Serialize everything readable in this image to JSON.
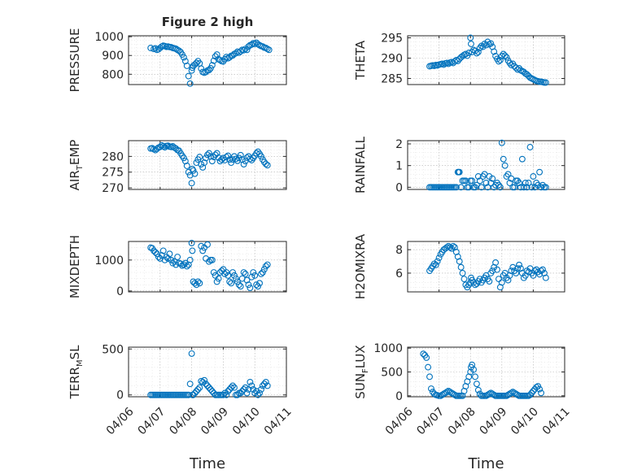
{
  "figure": {
    "title": "Figure 2 high",
    "marker_color": "#0072BD",
    "xlabel": "Time"
  },
  "chart_data": [
    {
      "type": "scatter",
      "name": "PRESSURE",
      "ylabel": "PRESSURE",
      "title": "Figure 2 high",
      "xlim": [
        "04/06",
        "04/11"
      ],
      "ylim": [
        745,
        1005
      ],
      "yticks": [
        800,
        900,
        1000
      ],
      "x": [
        6.7,
        6.8,
        6.85,
        6.9,
        6.95,
        7.0,
        7.05,
        7.1,
        7.15,
        7.2,
        7.25,
        7.3,
        7.35,
        7.4,
        7.45,
        7.5,
        7.55,
        7.6,
        7.65,
        7.7,
        7.75,
        7.8,
        7.85,
        7.9,
        7.95,
        8.0,
        8.02,
        8.05,
        8.1,
        8.15,
        8.2,
        8.25,
        8.3,
        8.35,
        8.4,
        8.45,
        8.5,
        8.55,
        8.6,
        8.65,
        8.7,
        8.75,
        8.8,
        8.85,
        8.9,
        8.95,
        9.0,
        9.05,
        9.1,
        9.15,
        9.2,
        9.25,
        9.3,
        9.35,
        9.4,
        9.45,
        9.5,
        9.55,
        9.6,
        9.65,
        9.7,
        9.75,
        9.8,
        9.85,
        9.9,
        9.95,
        10.0,
        10.05,
        10.1,
        10.15,
        10.2,
        10.25,
        10.3,
        10.35,
        10.4,
        10.45
      ],
      "y": [
        940,
        935,
        938,
        930,
        933,
        940,
        948,
        952,
        950,
        946,
        948,
        945,
        944,
        940,
        938,
        936,
        930,
        925,
        918,
        905,
        890,
        870,
        845,
        790,
        750,
        820,
        835,
        845,
        852,
        860,
        870,
        858,
        830,
        812,
        808,
        812,
        820,
        822,
        832,
        848,
        872,
        895,
        905,
        880,
        875,
        870,
        868,
        880,
        892,
        885,
        890,
        898,
        900,
        908,
        912,
        920,
        915,
        922,
        930,
        928,
        935,
        930,
        948,
        955,
        958,
        965,
        962,
        968,
        960,
        955,
        950,
        948,
        942,
        940,
        935,
        930
      ]
    },
    {
      "type": "scatter",
      "name": "THETA",
      "ylabel": "THETA",
      "xlim": [
        "04/06",
        "04/11"
      ],
      "ylim": [
        283.5,
        295.5
      ],
      "yticks": [
        285,
        290,
        295
      ],
      "x": [
        6.7,
        6.75,
        6.8,
        6.85,
        6.9,
        6.95,
        7.0,
        7.05,
        7.1,
        7.15,
        7.2,
        7.25,
        7.3,
        7.35,
        7.4,
        7.45,
        7.5,
        7.55,
        7.6,
        7.65,
        7.7,
        7.75,
        7.8,
        7.85,
        7.9,
        7.95,
        8.0,
        8.02,
        8.05,
        8.1,
        8.15,
        8.2,
        8.25,
        8.3,
        8.35,
        8.4,
        8.45,
        8.5,
        8.55,
        8.6,
        8.65,
        8.7,
        8.75,
        8.8,
        8.85,
        8.9,
        8.95,
        9.0,
        9.05,
        9.1,
        9.15,
        9.2,
        9.25,
        9.3,
        9.35,
        9.4,
        9.45,
        9.5,
        9.55,
        9.6,
        9.65,
        9.7,
        9.75,
        9.8,
        9.85,
        9.9,
        9.95,
        10.0,
        10.05,
        10.1,
        10.15,
        10.2,
        10.25,
        10.3,
        10.35,
        10.4
      ],
      "y": [
        288,
        288.1,
        288.2,
        288.1,
        288.3,
        288.2,
        288.4,
        288.5,
        288.6,
        288.4,
        288.7,
        288.8,
        288.6,
        288.9,
        289,
        288.8,
        289.2,
        289.5,
        289.3,
        289.8,
        290.2,
        290.5,
        290.8,
        291,
        290.6,
        291.3,
        295,
        293.5,
        291.5,
        292,
        291.8,
        291.2,
        291.5,
        292.5,
        293,
        292.8,
        293.5,
        293.2,
        294,
        293.4,
        293.6,
        292.8,
        291.6,
        290.5,
        289.8,
        289.2,
        289.5,
        290.5,
        291,
        290.6,
        290.2,
        289.4,
        288.8,
        288.3,
        288.6,
        288.0,
        287.6,
        287.2,
        287.5,
        287.0,
        286.8,
        286.6,
        286.2,
        286.0,
        285.6,
        285.2,
        285.0,
        284.8,
        284.6,
        284.4,
        284.3,
        284.2,
        284.2,
        284.1,
        284.0,
        284.0
      ]
    },
    {
      "type": "scatter",
      "name": "AIR_TEMP",
      "ylabel": "AIR_TEMP",
      "xlim": [
        "04/06",
        "04/11"
      ],
      "ylim": [
        269.5,
        285
      ],
      "yticks": [
        270,
        275,
        280
      ],
      "x": [
        6.7,
        6.75,
        6.8,
        6.85,
        6.9,
        6.95,
        7.0,
        7.05,
        7.1,
        7.15,
        7.2,
        7.25,
        7.3,
        7.35,
        7.4,
        7.45,
        7.5,
        7.55,
        7.6,
        7.65,
        7.7,
        7.75,
        7.8,
        7.85,
        7.9,
        7.95,
        8.0,
        8.02,
        8.05,
        8.1,
        8.15,
        8.2,
        8.25,
        8.3,
        8.35,
        8.4,
        8.45,
        8.5,
        8.55,
        8.6,
        8.65,
        8.7,
        8.75,
        8.8,
        8.85,
        8.9,
        8.95,
        9.0,
        9.05,
        9.1,
        9.15,
        9.2,
        9.25,
        9.3,
        9.35,
        9.4,
        9.45,
        9.5,
        9.55,
        9.6,
        9.65,
        9.7,
        9.75,
        9.8,
        9.85,
        9.9,
        9.95,
        10.0,
        10.05,
        10.1,
        10.15,
        10.2,
        10.25,
        10.3,
        10.35,
        10.4
      ],
      "y": [
        282.5,
        282.6,
        282.3,
        282.0,
        282.4,
        282.8,
        283.0,
        283.5,
        283.2,
        282.9,
        283.3,
        283.4,
        283.1,
        283.0,
        283.2,
        282.8,
        282.5,
        282.0,
        281.8,
        281.0,
        280.2,
        279.5,
        278.5,
        277.0,
        275.0,
        274.0,
        271.5,
        276.0,
        275.5,
        274.5,
        278.0,
        279.0,
        279.8,
        277.5,
        276.5,
        278.0,
        279.5,
        280.5,
        281.0,
        280.0,
        278.5,
        279.8,
        280.5,
        281.0,
        279.6,
        278.5,
        279.0,
        279.5,
        278.8,
        279.8,
        280.2,
        279.0,
        278.0,
        279.0,
        280.0,
        279.2,
        278.6,
        279.5,
        280.4,
        279.0,
        277.5,
        278.5,
        279.6,
        280.0,
        279.2,
        278.8,
        279.5,
        280.2,
        281.0,
        281.5,
        280.8,
        280.0,
        279.0,
        278.2,
        277.6,
        277.2
      ]
    },
    {
      "type": "scatter",
      "name": "RAINFALL",
      "ylabel": "RAINFALL",
      "xlim": [
        "04/06",
        "04/11"
      ],
      "ylim": [
        -0.1,
        2.15
      ],
      "yticks": [
        0,
        1,
        2
      ],
      "x": [
        6.7,
        6.75,
        6.8,
        6.85,
        6.9,
        6.95,
        7.0,
        7.05,
        7.1,
        7.15,
        7.2,
        7.25,
        7.3,
        7.35,
        7.4,
        7.45,
        7.5,
        7.55,
        7.6,
        7.62,
        7.65,
        7.7,
        7.75,
        7.8,
        7.85,
        7.9,
        7.95,
        8.0,
        8.05,
        8.1,
        8.15,
        8.2,
        8.25,
        8.3,
        8.35,
        8.4,
        8.45,
        8.5,
        8.55,
        8.6,
        8.65,
        8.7,
        8.75,
        8.8,
        8.85,
        8.9,
        8.95,
        9.0,
        9.05,
        9.1,
        9.15,
        9.2,
        9.25,
        9.3,
        9.35,
        9.4,
        9.45,
        9.5,
        9.55,
        9.6,
        9.65,
        9.7,
        9.75,
        9.8,
        9.85,
        9.9,
        9.95,
        10.0,
        10.05,
        10.1,
        10.15,
        10.2,
        10.25,
        10.3,
        10.35,
        10.4
      ],
      "y": [
        0,
        0,
        0,
        0,
        0,
        0,
        0,
        0,
        0,
        0,
        0,
        0,
        0,
        0,
        0,
        0,
        0,
        0,
        0.7,
        0.7,
        0.7,
        0,
        0.3,
        0.3,
        0.3,
        0,
        0,
        0.3,
        0.3,
        0,
        0,
        0.1,
        0.5,
        0.3,
        0,
        0.5,
        0.6,
        0.2,
        0,
        0.5,
        0.2,
        0.4,
        0,
        0.1,
        0.2,
        0.1,
        0,
        2.05,
        1.3,
        1.0,
        0.5,
        0.6,
        0.2,
        0.4,
        0,
        0,
        0.3,
        0.3,
        0.2,
        0,
        1.3,
        0,
        0.2,
        0,
        0.2,
        1.85,
        0,
        0.5,
        0,
        0.2,
        0.1,
        0.7,
        0,
        0.1,
        0,
        0
      ]
    },
    {
      "type": "scatter",
      "name": "MIXDEPTH",
      "ylabel": "MIXDEPTH",
      "xlim": [
        "04/06",
        "04/11"
      ],
      "ylim": [
        -30,
        1600
      ],
      "yticks": [
        0,
        1000
      ],
      "x": [
        6.7,
        6.75,
        6.8,
        6.85,
        6.9,
        6.95,
        7.0,
        7.05,
        7.1,
        7.15,
        7.2,
        7.25,
        7.3,
        7.35,
        7.4,
        7.45,
        7.5,
        7.55,
        7.6,
        7.65,
        7.7,
        7.75,
        7.8,
        7.85,
        7.9,
        7.95,
        8.0,
        8.02,
        8.05,
        8.1,
        8.15,
        8.2,
        8.25,
        8.3,
        8.35,
        8.4,
        8.45,
        8.5,
        8.55,
        8.6,
        8.65,
        8.7,
        8.75,
        8.8,
        8.85,
        8.9,
        8.95,
        9.0,
        9.05,
        9.1,
        9.15,
        9.2,
        9.25,
        9.3,
        9.35,
        9.4,
        9.45,
        9.5,
        9.55,
        9.6,
        9.65,
        9.7,
        9.75,
        9.8,
        9.85,
        9.9,
        9.95,
        10.0,
        10.05,
        10.1,
        10.15,
        10.2,
        10.25,
        10.3,
        10.35,
        10.4
      ],
      "y": [
        1400,
        1380,
        1300,
        1250,
        1200,
        1100,
        1050,
        1150,
        1300,
        1000,
        1100,
        1050,
        1200,
        1000,
        900,
        950,
        850,
        1100,
        900,
        880,
        820,
        850,
        900,
        800,
        850,
        1000,
        1550,
        1300,
        300,
        250,
        200,
        300,
        250,
        1450,
        1300,
        1400,
        1050,
        1500,
        950,
        1000,
        1000,
        600,
        500,
        300,
        400,
        600,
        650,
        700,
        550,
        600,
        500,
        300,
        250,
        600,
        500,
        400,
        300,
        200,
        150,
        400,
        600,
        550,
        350,
        200,
        100,
        450,
        600,
        500,
        200,
        150,
        250,
        550,
        600,
        700,
        800,
        850
      ]
    },
    {
      "type": "scatter",
      "name": "H2OMIXRA",
      "ylabel": "H2OMIXRA",
      "xlim": [
        "04/06",
        "04/11"
      ],
      "ylim": [
        4.4,
        8.7
      ],
      "yticks": [
        6,
        8
      ],
      "x": [
        6.7,
        6.75,
        6.8,
        6.85,
        6.9,
        6.95,
        7.0,
        7.05,
        7.1,
        7.15,
        7.2,
        7.25,
        7.3,
        7.35,
        7.4,
        7.45,
        7.5,
        7.55,
        7.6,
        7.65,
        7.7,
        7.75,
        7.8,
        7.85,
        7.9,
        7.95,
        8.0,
        8.02,
        8.05,
        8.1,
        8.15,
        8.2,
        8.25,
        8.3,
        8.35,
        8.4,
        8.45,
        8.5,
        8.55,
        8.6,
        8.65,
        8.7,
        8.75,
        8.8,
        8.85,
        8.9,
        8.95,
        9.0,
        9.05,
        9.1,
        9.15,
        9.2,
        9.25,
        9.3,
        9.35,
        9.4,
        9.45,
        9.5,
        9.55,
        9.6,
        9.65,
        9.7,
        9.75,
        9.8,
        9.85,
        9.9,
        9.95,
        10.0,
        10.05,
        10.1,
        10.15,
        10.2,
        10.25,
        10.3,
        10.35,
        10.4
      ],
      "y": [
        6.2,
        6.4,
        6.6,
        6.8,
        6.7,
        7.0,
        7.3,
        7.6,
        7.8,
        8.0,
        8.1,
        8.2,
        8.3,
        8.2,
        8.1,
        8.3,
        8.2,
        7.8,
        7.4,
        7.0,
        6.5,
        6.0,
        5.5,
        5.0,
        4.8,
        5.0,
        5.2,
        5.6,
        5.4,
        5.2,
        5.0,
        5.1,
        5.3,
        5.5,
        5.2,
        5.4,
        5.6,
        5.8,
        5.5,
        5.3,
        6.0,
        6.2,
        6.5,
        6.9,
        6.3,
        5.5,
        4.8,
        5.2,
        5.8,
        6.0,
        5.6,
        5.4,
        5.8,
        6.2,
        6.5,
        6.2,
        6.0,
        6.4,
        6.7,
        6.4,
        6.0,
        5.6,
        5.8,
        6.2,
        6.1,
        6.4,
        6.0,
        5.8,
        6.2,
        6.3,
        6.1,
        5.9,
        6.2,
        6.3,
        6.0,
        5.6
      ]
    },
    {
      "type": "scatter",
      "name": "TERR_MSL",
      "ylabel": "TERR_MSL",
      "xlim": [
        "04/06",
        "04/11"
      ],
      "ylim": [
        -20,
        520
      ],
      "yticks": [
        0,
        500
      ],
      "x": [
        6.7,
        6.75,
        6.8,
        6.85,
        6.9,
        6.95,
        7.0,
        7.05,
        7.1,
        7.15,
        7.2,
        7.25,
        7.3,
        7.35,
        7.4,
        7.45,
        7.5,
        7.55,
        7.6,
        7.65,
        7.7,
        7.75,
        7.8,
        7.85,
        7.9,
        7.95,
        8.0,
        8.02,
        8.05,
        8.1,
        8.15,
        8.2,
        8.25,
        8.3,
        8.35,
        8.4,
        8.45,
        8.5,
        8.55,
        8.6,
        8.65,
        8.7,
        8.75,
        8.8,
        8.85,
        8.9,
        8.95,
        9.0,
        9.05,
        9.1,
        9.15,
        9.2,
        9.25,
        9.3,
        9.35,
        9.4,
        9.45,
        9.5,
        9.55,
        9.6,
        9.65,
        9.7,
        9.75,
        9.8,
        9.85,
        9.9,
        9.95,
        10.0,
        10.05,
        10.1,
        10.15,
        10.2,
        10.25,
        10.3,
        10.35,
        10.4
      ],
      "y": [
        0,
        0,
        0,
        0,
        0,
        0,
        0,
        0,
        0,
        0,
        0,
        0,
        0,
        0,
        0,
        0,
        0,
        0,
        0,
        0,
        0,
        0,
        0,
        0,
        0,
        120,
        450,
        0,
        0,
        20,
        40,
        60,
        80,
        150,
        140,
        160,
        120,
        100,
        80,
        60,
        40,
        20,
        0,
        0,
        0,
        0,
        0,
        0,
        20,
        0,
        40,
        60,
        80,
        100,
        80,
        0,
        0,
        20,
        20,
        40,
        60,
        80,
        20,
        60,
        140,
        100,
        60,
        20,
        40,
        0,
        20,
        60,
        100,
        120,
        140,
        100
      ]
    },
    {
      "type": "scatter",
      "name": "SUN_FLUX",
      "ylabel": "SUN_FLUX",
      "xlim": [
        "04/06",
        "04/11"
      ],
      "ylim": [
        -20,
        1020
      ],
      "yticks": [
        0,
        500,
        1000
      ],
      "xticks": [
        "04/06",
        "04/07",
        "04/08",
        "04/09",
        "04/10",
        "04/11"
      ],
      "x": [
        6.5,
        6.55,
        6.6,
        6.65,
        6.7,
        6.75,
        6.8,
        6.85,
        6.9,
        6.95,
        7.0,
        7.05,
        7.1,
        7.15,
        7.2,
        7.25,
        7.3,
        7.35,
        7.4,
        7.45,
        7.5,
        7.55,
        7.6,
        7.65,
        7.7,
        7.75,
        7.8,
        7.85,
        7.9,
        7.95,
        8.0,
        8.02,
        8.05,
        8.1,
        8.15,
        8.2,
        8.25,
        8.3,
        8.35,
        8.4,
        8.45,
        8.5,
        8.55,
        8.6,
        8.65,
        8.7,
        8.75,
        8.8,
        8.85,
        8.9,
        8.95,
        9.0,
        9.05,
        9.1,
        9.15,
        9.2,
        9.25,
        9.3,
        9.35,
        9.4,
        9.45,
        9.5,
        9.55,
        9.6,
        9.65,
        9.7,
        9.75,
        9.8,
        9.85,
        9.9,
        9.95,
        10.0,
        10.05,
        10.1,
        10.15,
        10.2,
        10.25
      ],
      "y": [
        880,
        850,
        800,
        600,
        400,
        150,
        80,
        40,
        20,
        10,
        0,
        0,
        20,
        40,
        60,
        80,
        100,
        80,
        60,
        40,
        20,
        0,
        0,
        0,
        0,
        0,
        100,
        200,
        300,
        400,
        500,
        600,
        650,
        550,
        400,
        250,
        120,
        40,
        0,
        0,
        0,
        0,
        20,
        40,
        60,
        40,
        20,
        0,
        0,
        0,
        0,
        0,
        0,
        0,
        0,
        20,
        40,
        60,
        80,
        60,
        40,
        20,
        0,
        0,
        0,
        0,
        0,
        0,
        0,
        20,
        60,
        100,
        140,
        180,
        200,
        140,
        60
      ]
    }
  ]
}
